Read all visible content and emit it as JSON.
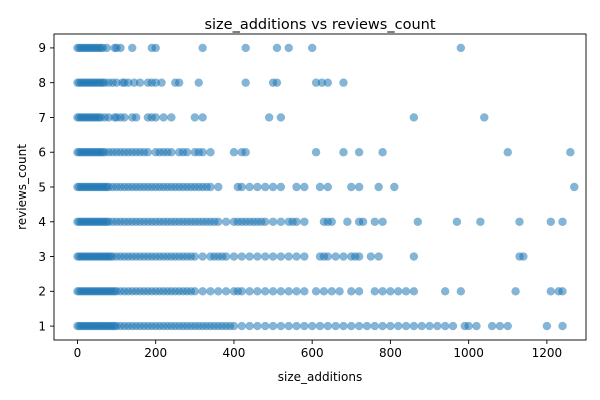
{
  "chart_data": {
    "type": "scatter",
    "title": "size_additions vs reviews_count",
    "xlabel": "size_additions",
    "ylabel": "reviews_count",
    "xlim": [
      -60,
      1300
    ],
    "ylim": [
      0.6,
      9.4
    ],
    "xticks": [
      0,
      200,
      400,
      600,
      800,
      1000,
      1200
    ],
    "yticks": [
      1,
      2,
      3,
      4,
      5,
      6,
      7,
      8,
      9
    ],
    "marker_color": "#1f77b4",
    "marker_alpha": 0.55,
    "grid": false,
    "legend": "none",
    "points_by_y": {
      "9": [
        0,
        5,
        10,
        15,
        20,
        25,
        30,
        35,
        40,
        45,
        50,
        55,
        60,
        65,
        75,
        95,
        100,
        110,
        140,
        190,
        200,
        320,
        430,
        510,
        540,
        600,
        980
      ],
      "8": [
        0,
        5,
        10,
        15,
        20,
        25,
        30,
        35,
        40,
        45,
        50,
        55,
        60,
        65,
        70,
        80,
        90,
        100,
        115,
        120,
        130,
        145,
        160,
        180,
        190,
        200,
        215,
        250,
        260,
        310,
        430,
        500,
        510,
        610,
        625,
        640,
        680
      ],
      "7": [
        0,
        5,
        10,
        15,
        20,
        25,
        30,
        35,
        40,
        45,
        50,
        55,
        60,
        70,
        80,
        95,
        100,
        110,
        120,
        140,
        150,
        180,
        190,
        200,
        220,
        240,
        300,
        320,
        490,
        520,
        860,
        1040
      ],
      "6": [
        0,
        5,
        10,
        15,
        20,
        25,
        30,
        35,
        40,
        45,
        50,
        55,
        60,
        65,
        70,
        80,
        90,
        100,
        110,
        120,
        130,
        140,
        150,
        160,
        170,
        180,
        200,
        210,
        220,
        230,
        240,
        260,
        270,
        280,
        300,
        310,
        320,
        340,
        400,
        420,
        430,
        610,
        680,
        720,
        780,
        1100,
        1260
      ],
      "5": [
        0,
        5,
        10,
        15,
        20,
        25,
        30,
        35,
        40,
        45,
        50,
        55,
        60,
        65,
        70,
        75,
        80,
        90,
        100,
        110,
        120,
        130,
        140,
        150,
        160,
        170,
        180,
        190,
        200,
        210,
        220,
        230,
        240,
        250,
        260,
        270,
        280,
        290,
        300,
        310,
        320,
        330,
        340,
        360,
        410,
        420,
        440,
        460,
        480,
        500,
        520,
        560,
        580,
        620,
        640,
        700,
        720,
        770,
        810,
        1270
      ],
      "4": [
        0,
        5,
        10,
        15,
        20,
        25,
        30,
        35,
        40,
        45,
        50,
        55,
        60,
        65,
        70,
        75,
        80,
        90,
        100,
        110,
        120,
        130,
        140,
        150,
        160,
        170,
        180,
        190,
        200,
        210,
        220,
        230,
        240,
        250,
        260,
        270,
        280,
        290,
        300,
        310,
        320,
        330,
        340,
        350,
        360,
        380,
        400,
        410,
        420,
        430,
        440,
        450,
        460,
        470,
        480,
        500,
        520,
        540,
        550,
        560,
        580,
        630,
        640,
        650,
        690,
        720,
        730,
        760,
        780,
        870,
        970,
        1030,
        1130,
        1210,
        1240
      ],
      "3": [
        0,
        5,
        10,
        15,
        20,
        25,
        30,
        35,
        40,
        45,
        50,
        55,
        60,
        65,
        70,
        75,
        80,
        85,
        90,
        100,
        110,
        120,
        130,
        140,
        150,
        160,
        170,
        180,
        190,
        200,
        210,
        220,
        230,
        240,
        250,
        260,
        270,
        280,
        290,
        300,
        320,
        340,
        350,
        360,
        370,
        380,
        400,
        420,
        440,
        460,
        480,
        500,
        520,
        540,
        560,
        580,
        620,
        630,
        640,
        660,
        680,
        700,
        710,
        720,
        750,
        770,
        860,
        1130,
        1140
      ],
      "2": [
        0,
        5,
        10,
        15,
        20,
        25,
        30,
        35,
        40,
        45,
        50,
        55,
        60,
        65,
        70,
        75,
        80,
        85,
        90,
        95,
        100,
        110,
        120,
        130,
        140,
        150,
        160,
        170,
        180,
        190,
        200,
        210,
        220,
        230,
        240,
        250,
        260,
        270,
        280,
        290,
        300,
        320,
        340,
        360,
        380,
        400,
        410,
        420,
        440,
        460,
        480,
        500,
        520,
        540,
        560,
        580,
        610,
        630,
        650,
        670,
        700,
        720,
        760,
        780,
        800,
        820,
        840,
        860,
        940,
        980,
        1120,
        1210,
        1230,
        1240
      ],
      "1": [
        0,
        5,
        10,
        15,
        20,
        25,
        30,
        35,
        40,
        45,
        50,
        55,
        60,
        65,
        70,
        75,
        80,
        85,
        90,
        95,
        100,
        110,
        120,
        130,
        140,
        150,
        160,
        170,
        180,
        190,
        200,
        210,
        220,
        230,
        240,
        250,
        260,
        270,
        280,
        290,
        300,
        310,
        320,
        330,
        340,
        350,
        360,
        370,
        380,
        390,
        400,
        420,
        440,
        460,
        480,
        500,
        520,
        540,
        560,
        580,
        600,
        620,
        640,
        660,
        680,
        700,
        720,
        740,
        760,
        780,
        800,
        820,
        840,
        860,
        880,
        900,
        920,
        940,
        960,
        990,
        1000,
        1020,
        1060,
        1080,
        1100,
        1200,
        1240
      ]
    }
  }
}
